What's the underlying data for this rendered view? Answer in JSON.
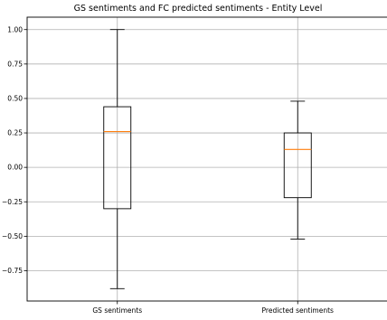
{
  "chart_data": {
    "type": "box",
    "title": "GS sentiments and FC predicted sentiments - Entity Level",
    "xlabel": "",
    "ylabel": "",
    "categories": [
      "GS sentiments",
      "Predicted sentiments"
    ],
    "series": [
      {
        "category": "GS sentiments",
        "whisker_low": -0.88,
        "q1": -0.3,
        "median": 0.26,
        "q3": 0.44,
        "whisker_high": 1.0
      },
      {
        "category": "Predicted sentiments",
        "whisker_low": -0.52,
        "q1": -0.22,
        "median": 0.13,
        "q3": 0.25,
        "whisker_high": 0.48
      }
    ],
    "yticks": [
      -0.75,
      -0.5,
      -0.25,
      0.0,
      0.25,
      0.5,
      0.75,
      1.0
    ],
    "ytick_labels": [
      "−0.75",
      "−0.50",
      "−0.25",
      "0.00",
      "0.25",
      "0.50",
      "0.75",
      "1.00"
    ],
    "ylim": [
      -0.97,
      1.09
    ],
    "grid": true,
    "colors": {
      "box": "#000000",
      "median": "#ff7f0e",
      "grid": "#b0b0b0"
    }
  }
}
